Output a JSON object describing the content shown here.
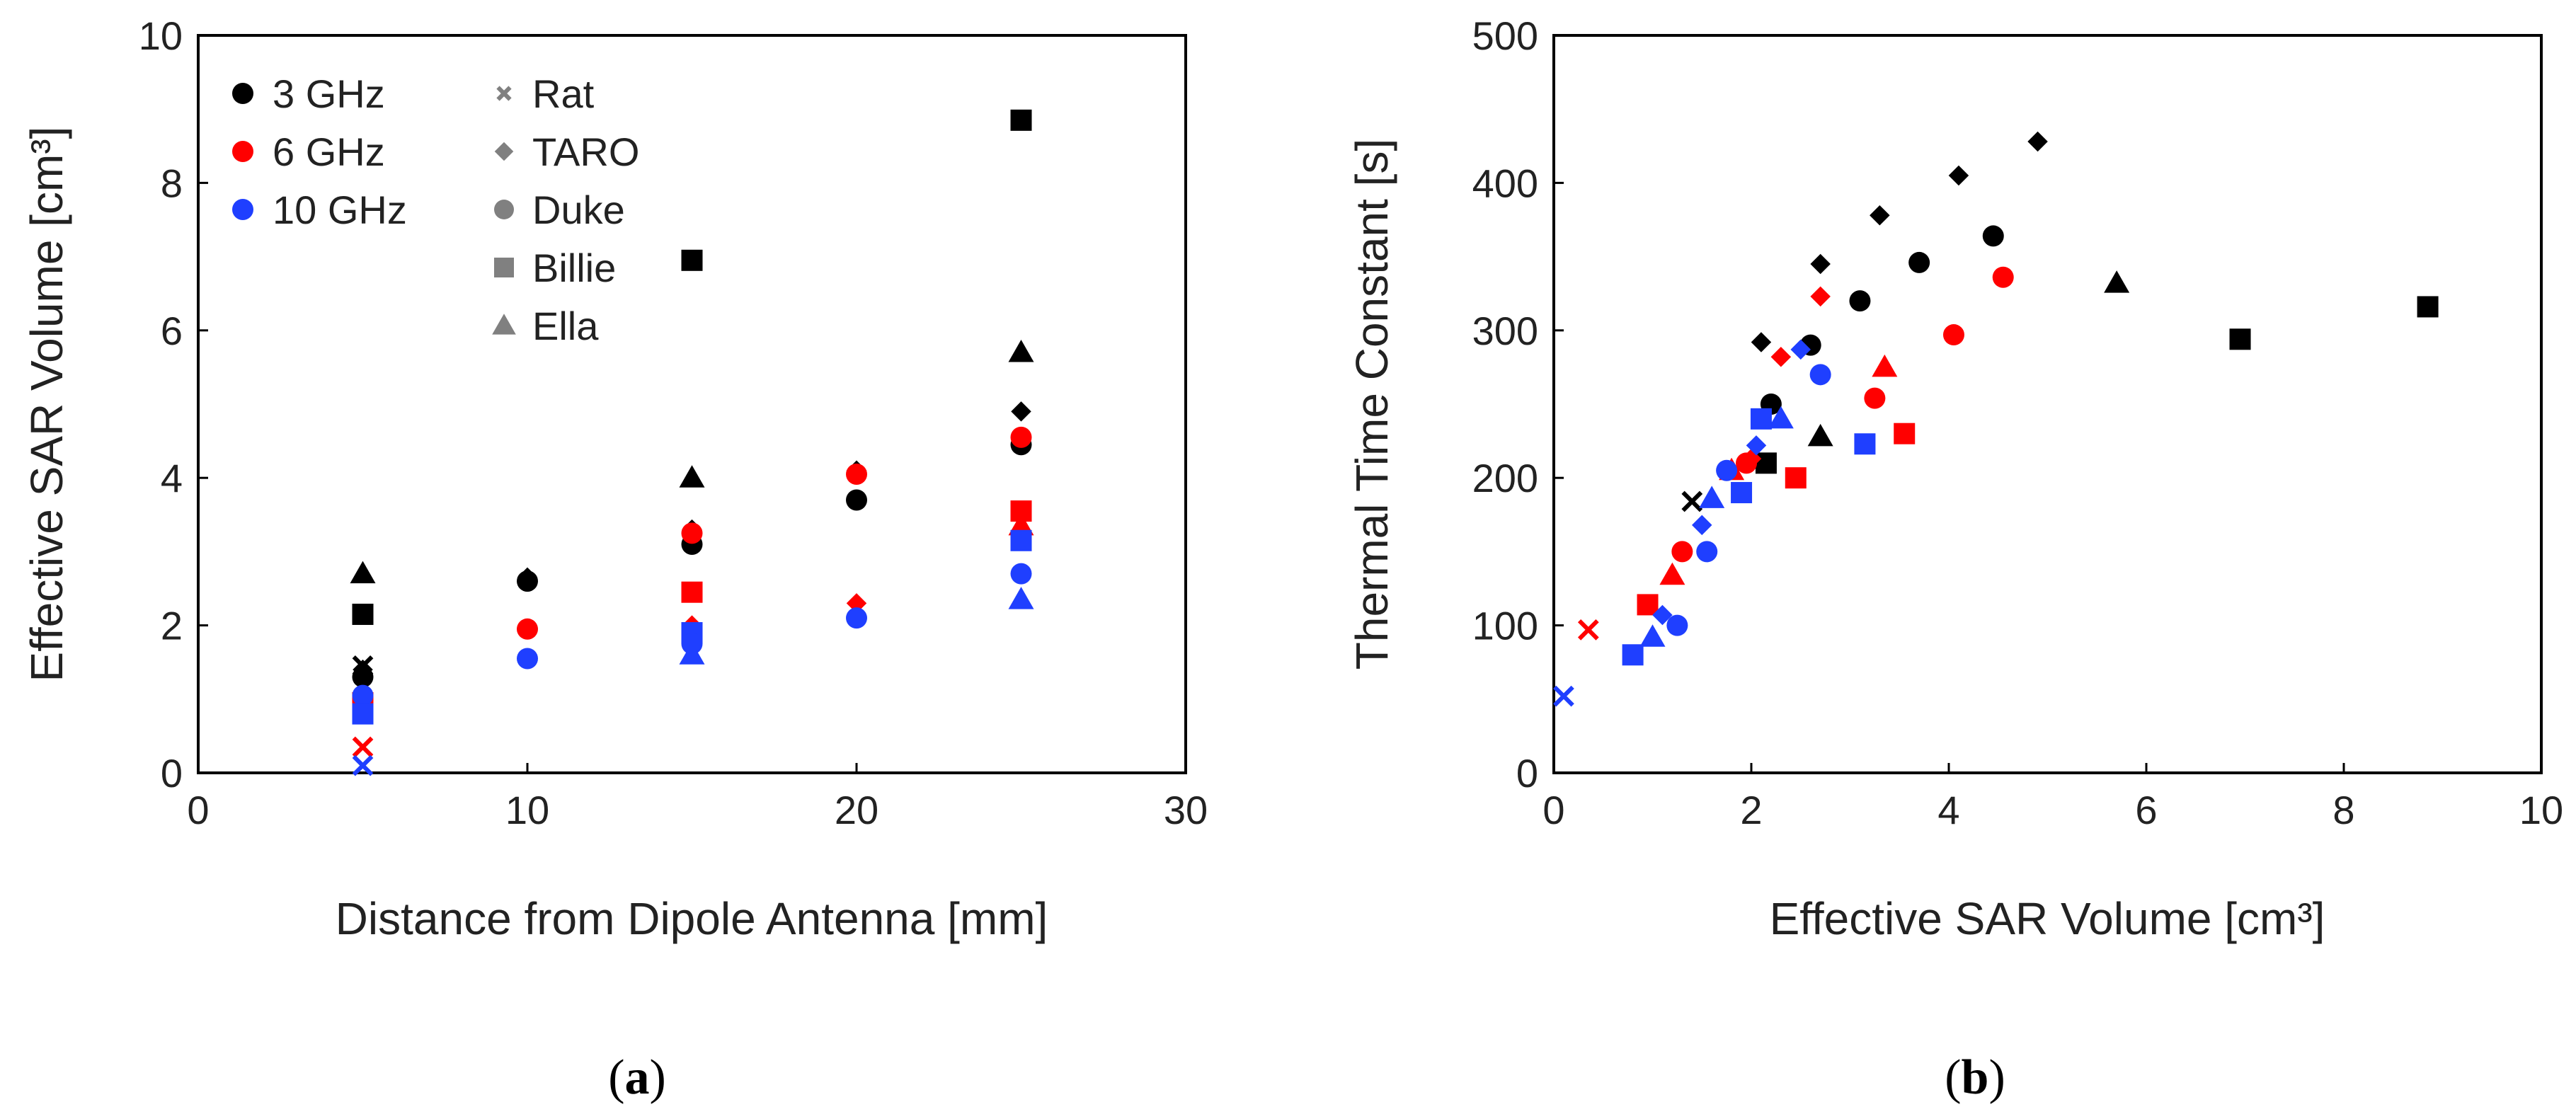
{
  "colors": {
    "3 GHz": "#000000",
    "6 GHz": "#ff0000",
    "10 GHz": "#1f3fff",
    "shape_legend": "#808080"
  },
  "legend": {
    "frequencies": [
      {
        "label": "3 GHz",
        "key": "3 GHz"
      },
      {
        "label": "6 GHz",
        "key": "6 GHz"
      },
      {
        "label": "10 GHz",
        "key": "10 GHz"
      }
    ],
    "models": [
      {
        "label": "Rat",
        "marker": "x"
      },
      {
        "label": "TARO",
        "marker": "diamond"
      },
      {
        "label": "Duke",
        "marker": "circle"
      },
      {
        "label": "Billie",
        "marker": "square"
      },
      {
        "label": "Ella",
        "marker": "triangle"
      }
    ]
  },
  "chart_data": [
    {
      "type": "scatter",
      "panel": "a",
      "caption": "a",
      "xlabel": "Distance from Dipole Antenna [mm]",
      "ylabel": "Effective SAR Volume [cm³]",
      "xlim": [
        0,
        30
      ],
      "ylim": [
        0,
        10
      ],
      "xticks": [
        0,
        10,
        20,
        30
      ],
      "yticks": [
        0,
        2,
        4,
        6,
        8,
        10
      ],
      "points": [
        {
          "model": "Ella",
          "freq": "3 GHz",
          "x": 5,
          "y": 2.7
        },
        {
          "model": "Billie",
          "freq": "3 GHz",
          "x": 5,
          "y": 2.15
        },
        {
          "model": "Duke",
          "freq": "3 GHz",
          "x": 5,
          "y": 1.3
        },
        {
          "model": "TARO",
          "freq": "3 GHz",
          "x": 5,
          "y": 1.4
        },
        {
          "model": "Rat",
          "freq": "3 GHz",
          "x": 5,
          "y": 1.45
        },
        {
          "model": "Duke",
          "freq": "6 GHz",
          "x": 5,
          "y": 1.0
        },
        {
          "model": "Billie",
          "freq": "6 GHz",
          "x": 5,
          "y": 0.95
        },
        {
          "model": "Rat",
          "freq": "6 GHz",
          "x": 5,
          "y": 0.35
        },
        {
          "model": "Duke",
          "freq": "10 GHz",
          "x": 5,
          "y": 1.05
        },
        {
          "model": "Billie",
          "freq": "10 GHz",
          "x": 5,
          "y": 0.8
        },
        {
          "model": "Rat",
          "freq": "10 GHz",
          "x": 5,
          "y": 0.1
        },
        {
          "model": "Duke",
          "freq": "3 GHz",
          "x": 10,
          "y": 2.6
        },
        {
          "model": "TARO",
          "freq": "3 GHz",
          "x": 10,
          "y": 2.65
        },
        {
          "model": "Duke",
          "freq": "6 GHz",
          "x": 10,
          "y": 1.95
        },
        {
          "model": "Duke",
          "freq": "10 GHz",
          "x": 10,
          "y": 1.55
        },
        {
          "model": "Billie",
          "freq": "3 GHz",
          "x": 15,
          "y": 6.95
        },
        {
          "model": "Ella",
          "freq": "3 GHz",
          "x": 15,
          "y": 4.0
        },
        {
          "model": "TARO",
          "freq": "3 GHz",
          "x": 15,
          "y": 3.3
        },
        {
          "model": "Duke",
          "freq": "3 GHz",
          "x": 15,
          "y": 3.1
        },
        {
          "model": "Duke",
          "freq": "6 GHz",
          "x": 15,
          "y": 3.25
        },
        {
          "model": "Billie",
          "freq": "6 GHz",
          "x": 15,
          "y": 2.45
        },
        {
          "model": "TARO",
          "freq": "6 GHz",
          "x": 15,
          "y": 2.0
        },
        {
          "model": "Billie",
          "freq": "10 GHz",
          "x": 15,
          "y": 1.9
        },
        {
          "model": "Duke",
          "freq": "10 GHz",
          "x": 15,
          "y": 1.75
        },
        {
          "model": "Ella",
          "freq": "10 GHz",
          "x": 15,
          "y": 1.6
        },
        {
          "model": "TARO",
          "freq": "3 GHz",
          "x": 20,
          "y": 4.1
        },
        {
          "model": "Duke",
          "freq": "3 GHz",
          "x": 20,
          "y": 3.7
        },
        {
          "model": "Duke",
          "freq": "6 GHz",
          "x": 20,
          "y": 4.05
        },
        {
          "model": "TARO",
          "freq": "6 GHz",
          "x": 20,
          "y": 2.3
        },
        {
          "model": "Duke",
          "freq": "10 GHz",
          "x": 20,
          "y": 2.1
        },
        {
          "model": "Billie",
          "freq": "3 GHz",
          "x": 25,
          "y": 8.85
        },
        {
          "model": "Ella",
          "freq": "3 GHz",
          "x": 25,
          "y": 5.7
        },
        {
          "model": "TARO",
          "freq": "3 GHz",
          "x": 25,
          "y": 4.9
        },
        {
          "model": "Duke",
          "freq": "3 GHz",
          "x": 25,
          "y": 4.45
        },
        {
          "model": "Duke",
          "freq": "6 GHz",
          "x": 25,
          "y": 4.55
        },
        {
          "model": "Billie",
          "freq": "6 GHz",
          "x": 25,
          "y": 3.55
        },
        {
          "model": "Ella",
          "freq": "6 GHz",
          "x": 25,
          "y": 3.35
        },
        {
          "model": "Billie",
          "freq": "10 GHz",
          "x": 25,
          "y": 3.15
        },
        {
          "model": "Duke",
          "freq": "10 GHz",
          "x": 25,
          "y": 2.7
        },
        {
          "model": "Ella",
          "freq": "10 GHz",
          "x": 25,
          "y": 2.35
        }
      ]
    },
    {
      "type": "scatter",
      "panel": "b",
      "caption": "b",
      "xlabel": "Effective SAR Volume [cm³]",
      "ylabel": "Thermal Time Constant [s]",
      "xlim": [
        0,
        10
      ],
      "ylim": [
        0,
        500
      ],
      "xticks": [
        0,
        2,
        4,
        6,
        8,
        10
      ],
      "yticks": [
        0,
        100,
        200,
        300,
        400,
        500
      ],
      "points": [
        {
          "model": "TARO",
          "freq": "3 GHz",
          "x": 4.9,
          "y": 428
        },
        {
          "model": "TARO",
          "freq": "3 GHz",
          "x": 4.1,
          "y": 405
        },
        {
          "model": "TARO",
          "freq": "3 GHz",
          "x": 3.3,
          "y": 378
        },
        {
          "model": "TARO",
          "freq": "3 GHz",
          "x": 2.7,
          "y": 345
        },
        {
          "model": "TARO",
          "freq": "3 GHz",
          "x": 2.1,
          "y": 292
        },
        {
          "model": "Duke",
          "freq": "3 GHz",
          "x": 4.45,
          "y": 364
        },
        {
          "model": "Duke",
          "freq": "3 GHz",
          "x": 3.7,
          "y": 346
        },
        {
          "model": "Duke",
          "freq": "3 GHz",
          "x": 3.1,
          "y": 320
        },
        {
          "model": "Duke",
          "freq": "3 GHz",
          "x": 2.6,
          "y": 290
        },
        {
          "model": "Duke",
          "freq": "3 GHz",
          "x": 2.2,
          "y": 250
        },
        {
          "model": "Ella",
          "freq": "3 GHz",
          "x": 5.7,
          "y": 332
        },
        {
          "model": "Ella",
          "freq": "3 GHz",
          "x": 2.7,
          "y": 228
        },
        {
          "model": "Billie",
          "freq": "3 GHz",
          "x": 8.85,
          "y": 316
        },
        {
          "model": "Billie",
          "freq": "3 GHz",
          "x": 6.95,
          "y": 294
        },
        {
          "model": "Billie",
          "freq": "3 GHz",
          "x": 2.15,
          "y": 210
        },
        {
          "model": "Rat",
          "freq": "3 GHz",
          "x": 1.4,
          "y": 184
        },
        {
          "model": "Duke",
          "freq": "6 GHz",
          "x": 4.55,
          "y": 336
        },
        {
          "model": "Duke",
          "freq": "6 GHz",
          "x": 4.05,
          "y": 297
        },
        {
          "model": "Duke",
          "freq": "6 GHz",
          "x": 3.25,
          "y": 254
        },
        {
          "model": "Duke",
          "freq": "6 GHz",
          "x": 1.95,
          "y": 210
        },
        {
          "model": "Duke",
          "freq": "6 GHz",
          "x": 1.3,
          "y": 150
        },
        {
          "model": "TARO",
          "freq": "6 GHz",
          "x": 2.7,
          "y": 323
        },
        {
          "model": "TARO",
          "freq": "6 GHz",
          "x": 2.3,
          "y": 282
        },
        {
          "model": "TARO",
          "freq": "6 GHz",
          "x": 2.0,
          "y": 213
        },
        {
          "model": "Ella",
          "freq": "6 GHz",
          "x": 3.35,
          "y": 275
        },
        {
          "model": "Ella",
          "freq": "6 GHz",
          "x": 1.8,
          "y": 205
        },
        {
          "model": "Ella",
          "freq": "6 GHz",
          "x": 1.2,
          "y": 134
        },
        {
          "model": "Billie",
          "freq": "6 GHz",
          "x": 3.55,
          "y": 230
        },
        {
          "model": "Billie",
          "freq": "6 GHz",
          "x": 2.45,
          "y": 200
        },
        {
          "model": "Billie",
          "freq": "6 GHz",
          "x": 0.95,
          "y": 114
        },
        {
          "model": "Rat",
          "freq": "6 GHz",
          "x": 0.35,
          "y": 97
        },
        {
          "model": "Duke",
          "freq": "10 GHz",
          "x": 2.7,
          "y": 270
        },
        {
          "model": "Duke",
          "freq": "10 GHz",
          "x": 1.75,
          "y": 205
        },
        {
          "model": "Duke",
          "freq": "10 GHz",
          "x": 1.55,
          "y": 150
        },
        {
          "model": "Duke",
          "freq": "10 GHz",
          "x": 1.25,
          "y": 100
        },
        {
          "model": "TARO",
          "freq": "10 GHz",
          "x": 2.5,
          "y": 287
        },
        {
          "model": "TARO",
          "freq": "10 GHz",
          "x": 2.05,
          "y": 222
        },
        {
          "model": "TARO",
          "freq": "10 GHz",
          "x": 1.5,
          "y": 168
        },
        {
          "model": "TARO",
          "freq": "10 GHz",
          "x": 1.1,
          "y": 107
        },
        {
          "model": "Ella",
          "freq": "10 GHz",
          "x": 2.3,
          "y": 240
        },
        {
          "model": "Ella",
          "freq": "10 GHz",
          "x": 1.6,
          "y": 186
        },
        {
          "model": "Ella",
          "freq": "10 GHz",
          "x": 1.0,
          "y": 92
        },
        {
          "model": "Billie",
          "freq": "10 GHz",
          "x": 3.15,
          "y": 223
        },
        {
          "model": "Billie",
          "freq": "10 GHz",
          "x": 2.1,
          "y": 240
        },
        {
          "model": "Billie",
          "freq": "10 GHz",
          "x": 1.9,
          "y": 190
        },
        {
          "model": "Billie",
          "freq": "10 GHz",
          "x": 0.8,
          "y": 80
        },
        {
          "model": "Rat",
          "freq": "10 GHz",
          "x": 0.1,
          "y": 52
        }
      ]
    }
  ]
}
